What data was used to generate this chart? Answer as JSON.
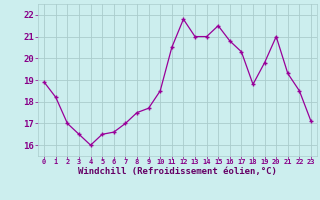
{
  "x": [
    0,
    1,
    2,
    3,
    4,
    5,
    6,
    7,
    8,
    9,
    10,
    11,
    12,
    13,
    14,
    15,
    16,
    17,
    18,
    19,
    20,
    21,
    22,
    23
  ],
  "y": [
    18.9,
    18.2,
    17.0,
    16.5,
    16.0,
    16.5,
    16.6,
    17.0,
    17.5,
    17.7,
    18.5,
    20.5,
    21.8,
    21.0,
    21.0,
    21.5,
    20.8,
    20.3,
    18.8,
    19.8,
    21.0,
    19.3,
    18.5,
    17.1
  ],
  "line_color": "#990099",
  "marker_color": "#990099",
  "bg_color": "#cceeee",
  "grid_color": "#aacccc",
  "xlabel": "Windchill (Refroidissement éolien,°C)",
  "xlabel_color": "#660066",
  "tick_color": "#880088",
  "ylim": [
    15.5,
    22.5
  ],
  "xlim": [
    -0.5,
    23.5
  ],
  "yticks": [
    16,
    17,
    18,
    19,
    20,
    21,
    22
  ],
  "xticks": [
    0,
    1,
    2,
    3,
    4,
    5,
    6,
    7,
    8,
    9,
    10,
    11,
    12,
    13,
    14,
    15,
    16,
    17,
    18,
    19,
    20,
    21,
    22,
    23
  ],
  "xtick_labels": [
    "0",
    "1",
    "2",
    "3",
    "4",
    "5",
    "6",
    "7",
    "8",
    "9",
    "10",
    "11",
    "12",
    "13",
    "14",
    "15",
    "16",
    "17",
    "18",
    "19",
    "20",
    "21",
    "22",
    "23"
  ]
}
